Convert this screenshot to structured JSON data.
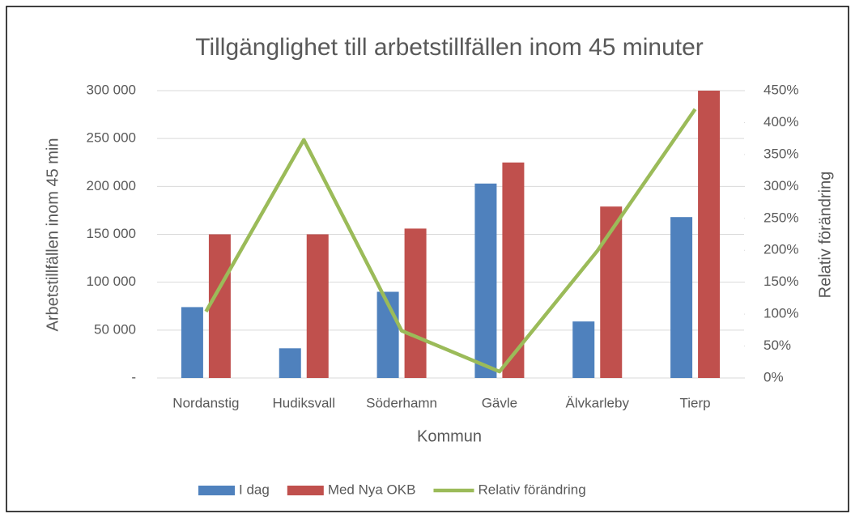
{
  "chart_data": {
    "type": "bar",
    "title": "Tillgänglighet till arbetstillfällen inom 45 minuter",
    "x_label": "Kommun",
    "y_label": "Arbetstillfällen inom 45 min",
    "y2_label": "Relativ förändring",
    "categories": [
      "Nordanstig",
      "Hudiksvall",
      "Söderhamn",
      "Gävle",
      "Älvkarleby",
      "Tierp"
    ],
    "series": [
      {
        "name": "I dag",
        "color": "#4f81bd",
        "values": [
          74000,
          31000,
          90000,
          203000,
          59000,
          168000
        ]
      },
      {
        "name": "Med Nya OKB",
        "color": "#c0504d",
        "values": [
          150000,
          150000,
          156000,
          225000,
          179000,
          300000
        ]
      },
      {
        "name": "Relativ förändring",
        "type": "line",
        "axis": "y2",
        "color": "#9bbb59",
        "values": [
          104,
          373,
          74,
          10,
          199,
          421
        ]
      }
    ],
    "ylim": [
      0,
      300000
    ],
    "yticks": [
      {
        "value": 0,
        "label": "-"
      },
      {
        "value": 50000,
        "label": "50 000"
      },
      {
        "value": 100000,
        "label": "100 000"
      },
      {
        "value": 150000,
        "label": "150 000"
      },
      {
        "value": 200000,
        "label": "200 000"
      },
      {
        "value": 250000,
        "label": "250 000"
      },
      {
        "value": 300000,
        "label": "300 000"
      }
    ],
    "y2lim": [
      0,
      450
    ],
    "y2ticks": [
      {
        "value": 0,
        "label": "0%"
      },
      {
        "value": 50,
        "label": "50%"
      },
      {
        "value": 100,
        "label": "100%"
      },
      {
        "value": 150,
        "label": "150%"
      },
      {
        "value": 200,
        "label": "200%"
      },
      {
        "value": 250,
        "label": "250%"
      },
      {
        "value": 300,
        "label": "300%"
      },
      {
        "value": 350,
        "label": "350%"
      },
      {
        "value": 400,
        "label": "400%"
      },
      {
        "value": 450,
        "label": "450%"
      }
    ],
    "grid": true,
    "legend": "bottom"
  }
}
